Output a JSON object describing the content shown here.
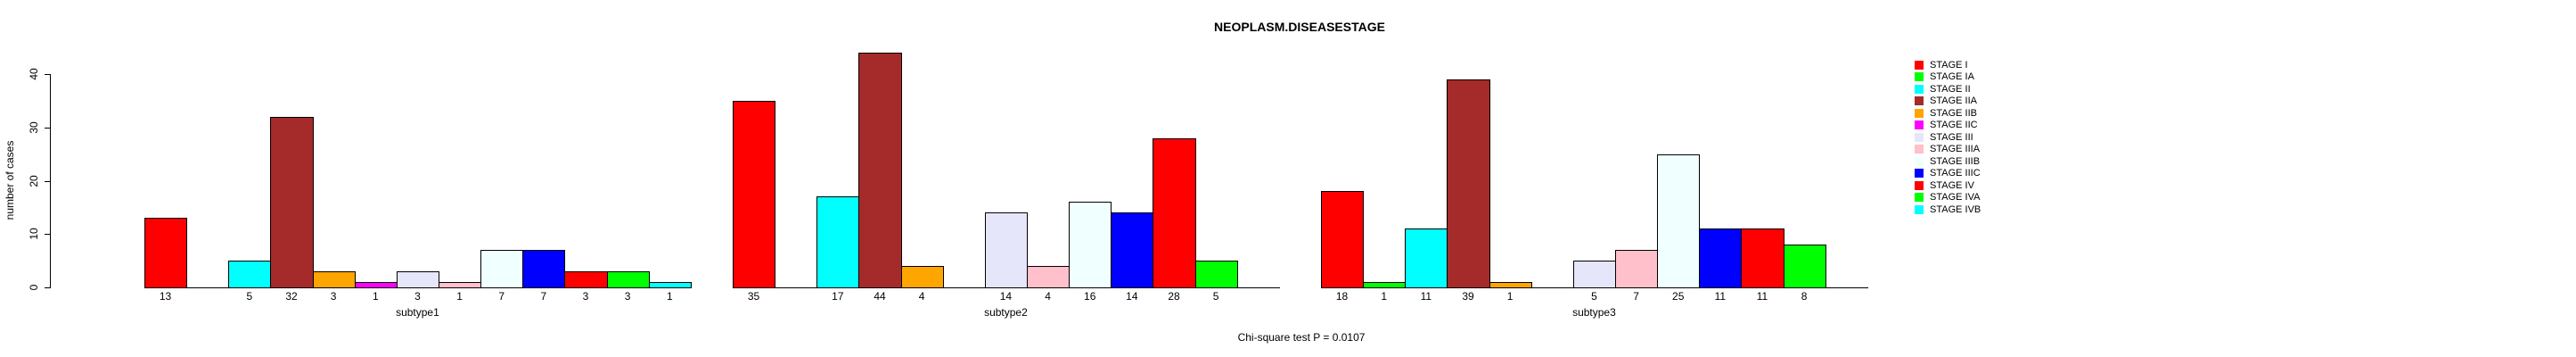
{
  "chart_data": {
    "type": "bar",
    "title": "NEOPLASM.DISEASESTAGE",
    "ylabel": "number of cases",
    "xlabel": "",
    "note": "Chi-square test P = 0.0107",
    "grid": false,
    "legend_position": "right",
    "bar_value_labels": true,
    "zero_values_hidden": true,
    "ylim": [
      0,
      40
    ],
    "y_ticks": [
      0,
      10,
      20,
      30,
      40
    ],
    "categories": [
      "subtype1",
      "subtype2",
      "subtype3"
    ],
    "stages": [
      {
        "label": "STAGE I",
        "color": "#FF0000"
      },
      {
        "label": "STAGE IA",
        "color": "#00FF00"
      },
      {
        "label": "STAGE II",
        "color": "#00FFFF"
      },
      {
        "label": "STAGE IIA",
        "color": "#A52A2A"
      },
      {
        "label": "STAGE IIB",
        "color": "#FFA500"
      },
      {
        "label": "STAGE IIC",
        "color": "#FF00FF"
      },
      {
        "label": "STAGE III",
        "color": "#E6E6FA"
      },
      {
        "label": "STAGE IIIA",
        "color": "#FFC0CB"
      },
      {
        "label": "STAGE IIIB",
        "color": "#F0FFFF"
      },
      {
        "label": "STAGE IIIC",
        "color": "#0000FF"
      },
      {
        "label": "STAGE IV",
        "color": "#FF0000"
      },
      {
        "label": "STAGE IVA",
        "color": "#00FF00"
      },
      {
        "label": "STAGE IVB",
        "color": "#00FFFF"
      }
    ],
    "series": [
      {
        "name": "subtype1",
        "values": [
          13,
          0,
          5,
          32,
          3,
          1,
          3,
          1,
          7,
          7,
          3,
          3,
          1
        ]
      },
      {
        "name": "subtype2",
        "values": [
          35,
          0,
          17,
          44,
          4,
          0,
          14,
          4,
          16,
          14,
          28,
          5,
          0
        ]
      },
      {
        "name": "subtype3",
        "values": [
          18,
          1,
          11,
          39,
          1,
          0,
          5,
          7,
          25,
          11,
          11,
          8,
          0
        ]
      }
    ],
    "axis_color": "#000000",
    "background_color": "#FFFFFF"
  }
}
